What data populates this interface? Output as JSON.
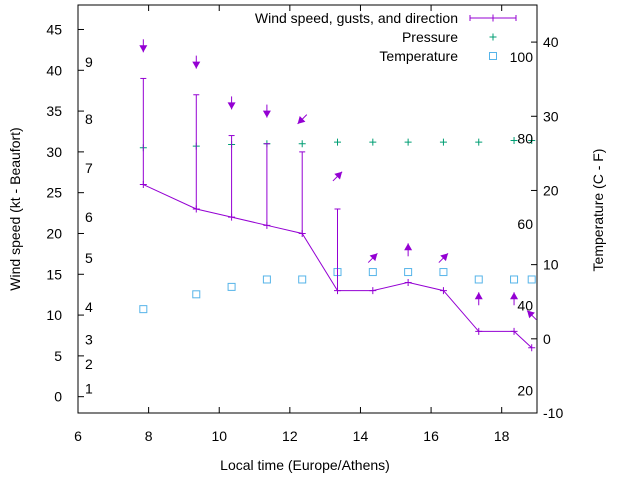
{
  "chart_data": {
    "type": "line",
    "xlabel": "Local time (Europe/Athens)",
    "ylabel": "Wind speed (kt - Beaufort)",
    "y2label": "Temperature (C - F)",
    "xlim": [
      6,
      19
    ],
    "ylim": [
      -2,
      48
    ],
    "y2lim": [
      -10,
      45
    ],
    "xticks": [
      6,
      8,
      10,
      12,
      14,
      16,
      18
    ],
    "yticks": [
      0,
      5,
      10,
      15,
      20,
      25,
      30,
      35,
      40,
      45
    ],
    "y2ticks": [
      -10,
      0,
      10,
      20,
      30,
      40
    ],
    "beaufort_labels": [
      {
        "text": "1",
        "y": 1
      },
      {
        "text": "2",
        "y": 4
      },
      {
        "text": "3",
        "y": 7
      },
      {
        "text": "4",
        "y": 11
      },
      {
        "text": "5",
        "y": 17
      },
      {
        "text": "6",
        "y": 22
      },
      {
        "text": "7",
        "y": 28
      },
      {
        "text": "8",
        "y": 34
      },
      {
        "text": "9",
        "y": 41
      }
    ],
    "fahrenheit_labels": [
      {
        "text": "20",
        "y2": -7
      },
      {
        "text": "40",
        "y2": 4.5
      },
      {
        "text": "60",
        "y2": 15.5
      },
      {
        "text": "80",
        "y2": 27
      },
      {
        "text": "100",
        "y2": 38
      }
    ],
    "legend": [
      {
        "label": "Wind speed, gusts, and direction",
        "symbol": "line"
      },
      {
        "label": "Pressure",
        "symbol": "plus"
      },
      {
        "label": "Temperature",
        "symbol": "square"
      }
    ],
    "legend_position": "top-right",
    "series": {
      "wind": {
        "name": "Wind speed, gusts, and direction",
        "color": "#9400d3",
        "x": [
          7.85,
          9.35,
          10.35,
          11.35,
          12.35,
          13.35,
          14.35,
          15.35,
          16.35,
          17.35,
          18.35,
          18.85
        ],
        "speed": [
          26,
          23,
          22,
          21,
          20,
          13,
          13,
          14,
          13,
          8,
          8,
          6
        ],
        "gust": [
          39,
          37,
          32,
          31,
          30,
          23,
          13,
          14,
          13,
          8,
          8,
          6
        ]
      },
      "pressure": {
        "name": "Pressure",
        "color": "#009e73",
        "x": [
          7.85,
          9.35,
          10.35,
          11.35,
          12.35,
          13.35,
          14.35,
          15.35,
          16.35,
          17.35,
          18.35,
          18.85
        ],
        "y": [
          30.5,
          30.7,
          30.9,
          31.0,
          31.0,
          31.2,
          31.2,
          31.2,
          31.2,
          31.2,
          31.4,
          31.4
        ]
      },
      "temperature": {
        "name": "Temperature",
        "color": "#56b4e9",
        "x": [
          7.85,
          9.35,
          10.35,
          11.35,
          12.35,
          13.35,
          14.35,
          15.35,
          16.35,
          17.35,
          18.35,
          18.85
        ],
        "y2": [
          4,
          6,
          7,
          8,
          8,
          9,
          9,
          9,
          9,
          8,
          8,
          8
        ]
      }
    },
    "direction_arrows": [
      {
        "x": 7.85,
        "y": 43,
        "dir": "S"
      },
      {
        "x": 9.35,
        "y": 41,
        "dir": "S"
      },
      {
        "x": 10.35,
        "y": 36,
        "dir": "S"
      },
      {
        "x": 11.35,
        "y": 35,
        "dir": "S"
      },
      {
        "x": 12.35,
        "y": 34,
        "dir": "SW"
      },
      {
        "x": 13.35,
        "y": 27,
        "dir": "NE"
      },
      {
        "x": 14.35,
        "y": 17,
        "dir": "NE"
      },
      {
        "x": 15.35,
        "y": 18,
        "dir": "N"
      },
      {
        "x": 16.35,
        "y": 17,
        "dir": "NE"
      },
      {
        "x": 17.35,
        "y": 12,
        "dir": "N"
      },
      {
        "x": 18.35,
        "y": 12,
        "dir": "N"
      },
      {
        "x": 18.85,
        "y": 10,
        "dir": "NW"
      }
    ]
  }
}
